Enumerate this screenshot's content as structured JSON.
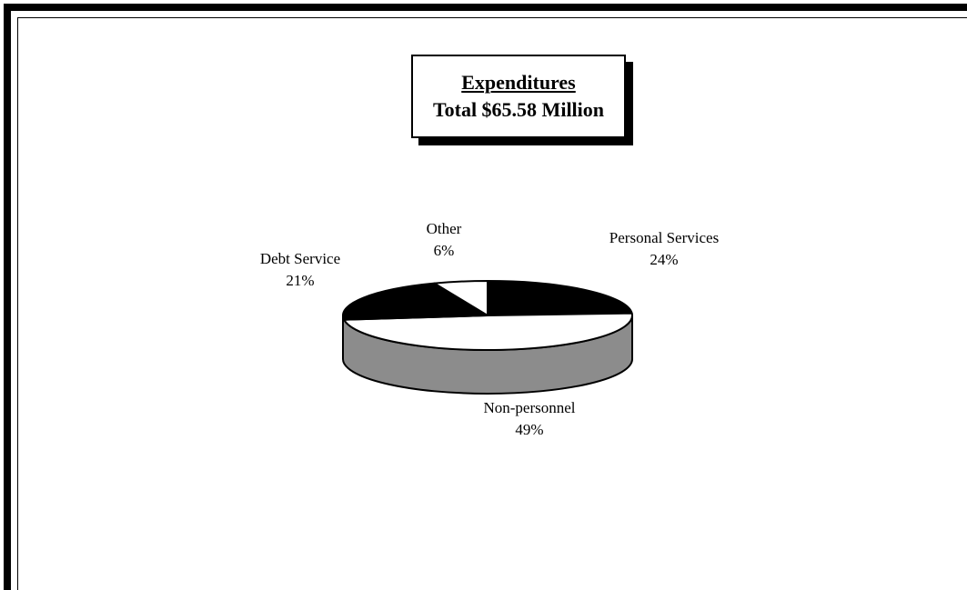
{
  "chart_data": {
    "type": "pie",
    "title": "Expenditures",
    "subtitle": "Total $65.58 Million",
    "slices": [
      {
        "label": "Personal Services",
        "value": 24,
        "value_label": "24%",
        "color": "#000000"
      },
      {
        "label": "Non-personnel",
        "value": 49,
        "value_label": "49%",
        "color": "#ffffff"
      },
      {
        "label": "Debt Service",
        "value": 21,
        "value_label": "21%",
        "color": "#000000"
      },
      {
        "label": "Other",
        "value": 6,
        "value_label": "6%",
        "color": "#ffffff"
      }
    ],
    "side_color": "#8c8c8c",
    "legend": "none"
  }
}
